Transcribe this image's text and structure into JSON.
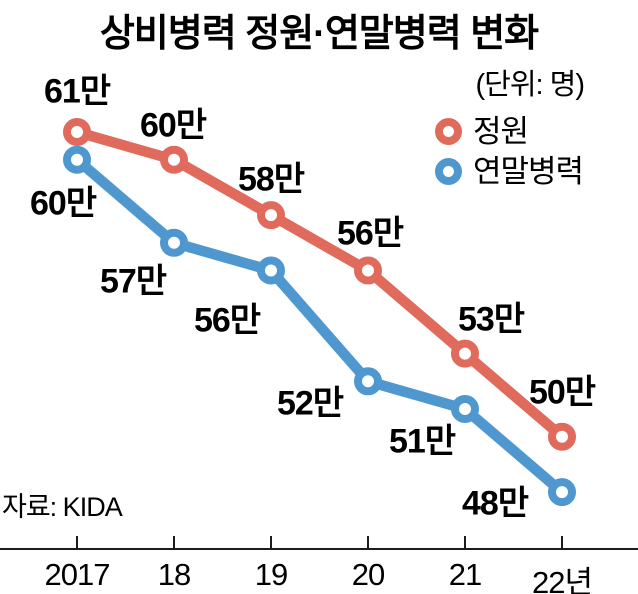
{
  "title": "상비병력 정원·연말병력 변화",
  "unit_label": "(단위: 명)",
  "source_label": "자료: KIDA",
  "chart_data": {
    "type": "line",
    "title": "상비병력 정원·연말병력 변화",
    "unit": "명",
    "categories": [
      "2017",
      "18",
      "19",
      "20",
      "21",
      "22년"
    ],
    "series": [
      {
        "name": "정원",
        "color": "#e06a5b",
        "values_10k": [
          61,
          60,
          58,
          56,
          53,
          50
        ],
        "labels": [
          "61만",
          "60만",
          "58만",
          "56만",
          "53만",
          "50만"
        ],
        "label_offsets": [
          [
            0,
            -44
          ],
          [
            -1,
            -38
          ],
          [
            0,
            -39
          ],
          [
            2,
            -41
          ],
          [
            26,
            -38
          ],
          [
            0,
            -48
          ]
        ]
      },
      {
        "name": "연말병력",
        "color": "#4f97cf",
        "values_10k": [
          60,
          57,
          56,
          52,
          51,
          48
        ],
        "labels": [
          "60만",
          "57만",
          "56만",
          "52만",
          "51만",
          "48만"
        ],
        "label_offsets": [
          [
            -14,
            40
          ],
          [
            -41,
            35
          ],
          [
            -44,
            46
          ],
          [
            -58,
            19
          ],
          [
            -43,
            29
          ],
          [
            -67,
            8
          ]
        ]
      }
    ],
    "y_value_range_10k": [
      48,
      61
    ],
    "legend_position": "top-right",
    "grid": false,
    "source": "자료: KIDA"
  }
}
